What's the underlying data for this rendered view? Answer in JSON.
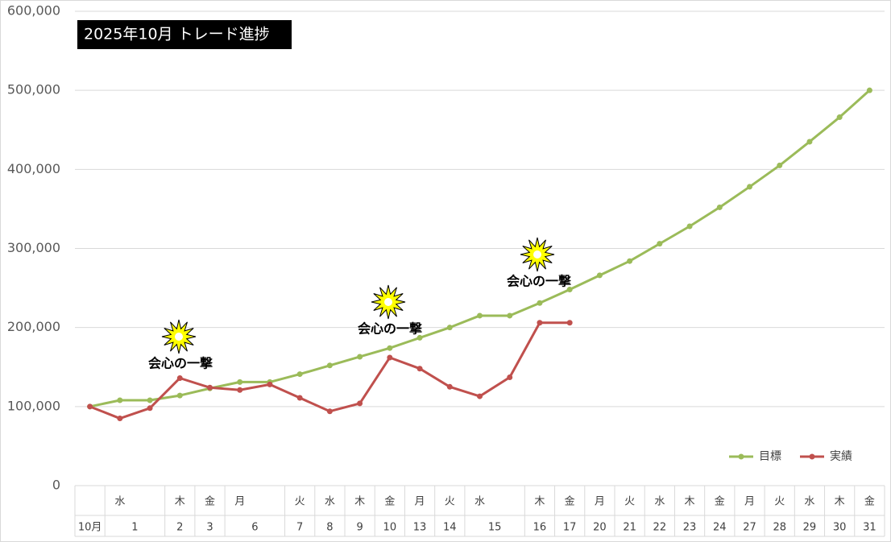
{
  "chart_data": {
    "type": "line",
    "title": "2025年10月  トレード進捗",
    "weekdays": [
      null,
      "水",
      null,
      "木",
      "金",
      "月",
      null,
      "火",
      "水",
      "木",
      "金",
      "月",
      "火",
      "水",
      null,
      "木",
      "金",
      "月",
      "火",
      "水",
      "木",
      "金",
      "月",
      "火",
      "水",
      "木",
      "金"
    ],
    "days": [
      "10月",
      "1",
      null,
      "2",
      "3",
      "6",
      null,
      "7",
      "8",
      "9",
      "10",
      "13",
      "14",
      "15",
      null,
      "16",
      "17",
      "20",
      "21",
      "22",
      "23",
      "24",
      "27",
      "28",
      "29",
      "30",
      "31"
    ],
    "series": [
      {
        "name": "目標",
        "color": "#9bbb59",
        "values": [
          100000,
          108000,
          108000,
          114000,
          123000,
          131000,
          131000,
          141000,
          152000,
          163000,
          174000,
          187000,
          200000,
          215000,
          215000,
          231000,
          248000,
          266000,
          284000,
          306000,
          328000,
          352000,
          378000,
          405000,
          435000,
          466000,
          500000
        ]
      },
      {
        "name": "実績",
        "color": "#c0504d",
        "values": [
          100000,
          85000,
          98000,
          136000,
          124000,
          121000,
          128000,
          111000,
          94000,
          104000,
          162000,
          148000,
          125000,
          113000,
          137000,
          206000,
          206000,
          null,
          null,
          null,
          null,
          null,
          null,
          null,
          null,
          null,
          null
        ]
      }
    ],
    "annotations": [
      "会心の一撃",
      "会心の一撃",
      "会心の一撃"
    ],
    "ylim": [
      0,
      600000
    ],
    "yticks": [
      0,
      {
        "value": 100000,
        "label": "100,000"
      },
      {
        "value": 200000,
        "label": "200,000"
      },
      {
        "value": 300000,
        "label": "300,000"
      },
      {
        "value": 400000,
        "label": "400,000"
      },
      {
        "value": 500000,
        "label": "500,000"
      },
      {
        "value": 600000,
        "label": "600,000"
      }
    ],
    "grid": true,
    "legend": "bottom-right"
  }
}
